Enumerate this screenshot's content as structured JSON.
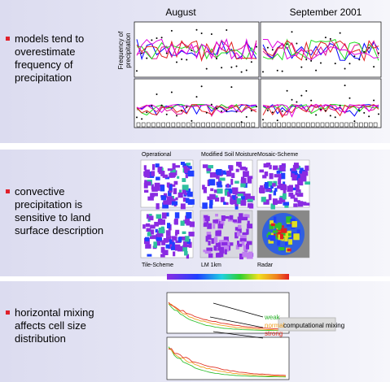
{
  "sections": [
    {
      "bullet": [
        "models tend to",
        "overestimate",
        "frequency of",
        "precipitation"
      ],
      "figure": {
        "left_title": "August",
        "right_title": "September 2001",
        "y_label": [
          "Frequency of",
          "precipitation"
        ]
      }
    },
    {
      "bullet": [
        "convective",
        "precipitation is",
        "sensitive to land",
        "surface description"
      ],
      "figure": {
        "panels": [
          "Operational",
          "Modified Soil Moisture",
          "Mosaic-Scheme",
          "Tile-Scheme",
          "LM 1km",
          "Radar"
        ]
      }
    },
    {
      "bullet": [
        "horizontal mixing",
        "affects cell size",
        "distribution"
      ],
      "figure": {
        "labels": [
          "weak",
          "normal",
          "strong"
        ],
        "note": "computational mixing"
      }
    }
  ]
}
